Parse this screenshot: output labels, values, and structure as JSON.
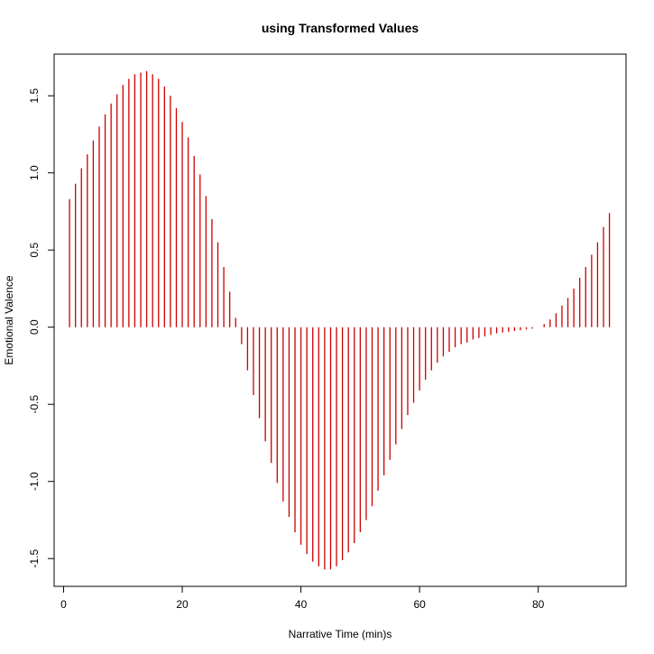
{
  "chart_data": {
    "type": "bar",
    "title": "using Transformed Values",
    "xlabel": "Narrative Time (min)s",
    "ylabel": "Emotional Valence",
    "xlim": [
      -1.6,
      94.8
    ],
    "ylim": [
      -1.68,
      1.77
    ],
    "x_ticks": [
      0,
      20,
      40,
      60,
      80
    ],
    "y_ticks": [
      -1.5,
      -1.0,
      -0.5,
      0.0,
      0.5,
      1.0,
      1.5
    ],
    "x_tick_labels": [
      "0",
      "20",
      "40",
      "60",
      "80"
    ],
    "y_tick_labels": [
      "-1.5",
      "-1.0",
      "-0.5",
      "0.0",
      "0.5",
      "1.0",
      "1.5"
    ],
    "grid": false,
    "color": "#CC0000",
    "x": [
      1,
      2,
      3,
      4,
      5,
      6,
      7,
      8,
      9,
      10,
      11,
      12,
      13,
      14,
      15,
      16,
      17,
      18,
      19,
      20,
      21,
      22,
      23,
      24,
      25,
      26,
      27,
      28,
      29,
      30,
      31,
      32,
      33,
      34,
      35,
      36,
      37,
      38,
      39,
      40,
      41,
      42,
      43,
      44,
      45,
      46,
      47,
      48,
      49,
      50,
      51,
      52,
      53,
      54,
      55,
      56,
      57,
      58,
      59,
      60,
      61,
      62,
      63,
      64,
      65,
      66,
      67,
      68,
      69,
      70,
      71,
      72,
      73,
      74,
      75,
      76,
      77,
      78,
      79,
      80,
      81,
      82,
      83,
      84,
      85,
      86,
      87,
      88,
      89,
      90,
      91,
      92
    ],
    "values": [
      0.83,
      0.93,
      1.03,
      1.12,
      1.21,
      1.3,
      1.38,
      1.45,
      1.51,
      1.57,
      1.61,
      1.64,
      1.65,
      1.66,
      1.64,
      1.61,
      1.56,
      1.5,
      1.42,
      1.33,
      1.23,
      1.11,
      0.99,
      0.85,
      0.7,
      0.55,
      0.39,
      0.23,
      0.06,
      -0.11,
      -0.28,
      -0.44,
      -0.59,
      -0.74,
      -0.88,
      -1.01,
      -1.13,
      -1.23,
      -1.33,
      -1.41,
      -1.47,
      -1.52,
      -1.55,
      -1.57,
      -1.57,
      -1.55,
      -1.51,
      -1.46,
      -1.4,
      -1.33,
      -1.25,
      -1.16,
      -1.06,
      -0.96,
      -0.86,
      -0.76,
      -0.66,
      -0.57,
      -0.49,
      -0.41,
      -0.34,
      -0.28,
      -0.23,
      -0.19,
      -0.16,
      -0.13,
      -0.11,
      -0.1,
      -0.08,
      -0.07,
      -0.06,
      -0.05,
      -0.04,
      -0.035,
      -0.03,
      -0.025,
      -0.02,
      -0.015,
      -0.01,
      0.0,
      0.02,
      0.05,
      0.09,
      0.14,
      0.19,
      0.25,
      0.32,
      0.39,
      0.47,
      0.55,
      0.65,
      0.74
    ]
  }
}
